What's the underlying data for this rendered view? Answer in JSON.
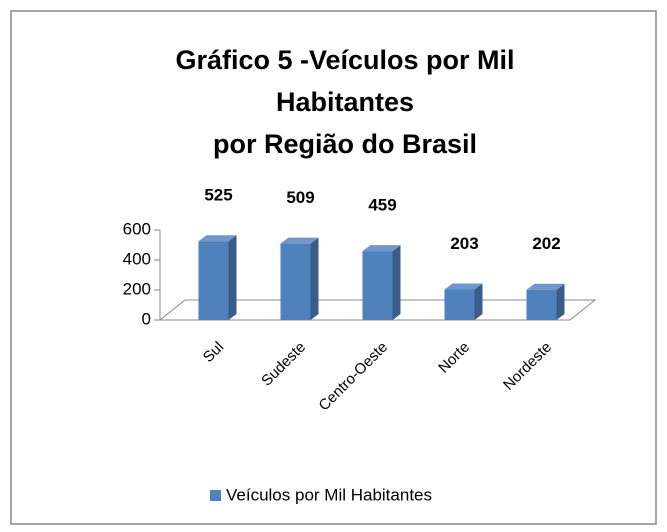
{
  "chart_data": {
    "type": "bar",
    "title": [
      "Gráfico 5 -Veículos por Mil",
      "Habitantes",
      "por Região do Brasil"
    ],
    "categories": [
      "Sul",
      "Sudeste",
      "Centro-Oeste",
      "Norte",
      "Nordeste"
    ],
    "series": [
      {
        "name": "Veículos por Mil Habitantes",
        "color": "#4f81bd",
        "values": [
          525,
          509,
          459,
          203,
          202
        ]
      }
    ],
    "ylim": [
      0,
      600
    ],
    "yticks": [
      0,
      200,
      400,
      600
    ],
    "legend": "bottom"
  }
}
